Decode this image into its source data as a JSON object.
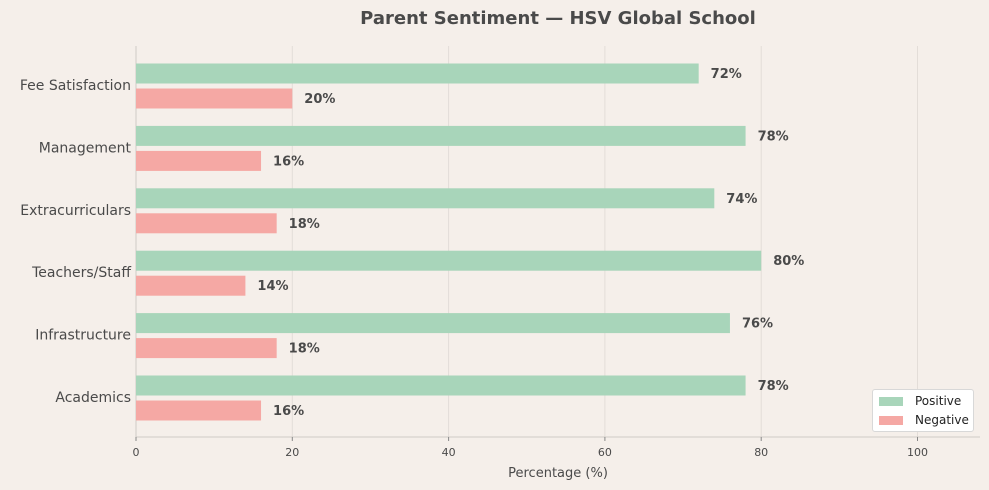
{
  "chart_data": {
    "type": "bar",
    "orientation": "horizontal",
    "title": "Parent Sentiment — HSV Global School",
    "xlabel": "Percentage (%)",
    "ylabel": "",
    "xlim": [
      0,
      108
    ],
    "xticks": [
      0,
      20,
      40,
      60,
      80,
      100
    ],
    "grid": "vertical",
    "legend_position": "bottom-right",
    "categories": [
      "Fee Satisfaction",
      "Management",
      "Extracurriculars",
      "Teachers/Staff",
      "Infrastructure",
      "Academics"
    ],
    "series": [
      {
        "name": "Positive",
        "color": "#a8d5ba",
        "values": [
          72,
          78,
          74,
          80,
          76,
          78
        ]
      },
      {
        "name": "Negative",
        "color": "#f5a8a4",
        "values": [
          20,
          16,
          18,
          14,
          18,
          16
        ]
      }
    ],
    "value_label_suffix": "%"
  }
}
